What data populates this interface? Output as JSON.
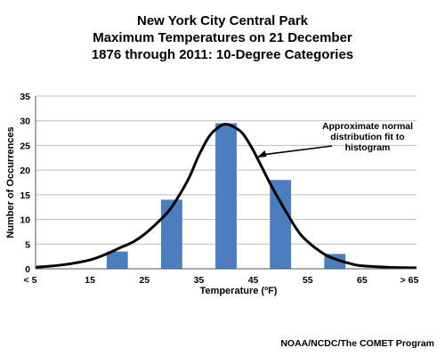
{
  "chart_data": {
    "type": "bar",
    "title_lines": [
      "New York City Central Park",
      "Maximum Temperatures on 21 December",
      "1876 through 2011: 10-Degree Categories"
    ],
    "xlabel": "Temperature (ºF)",
    "ylabel": "Number of Occurrences",
    "x_ticks": [
      "< 5",
      "15",
      "25",
      "35",
      "45",
      "55",
      "65",
      "> 65"
    ],
    "x_tick_values": [
      5,
      15,
      25,
      35,
      45,
      55,
      65,
      75
    ],
    "xlim": [
      5,
      75
    ],
    "ylim": [
      0,
      35
    ],
    "y_ticks": [
      0,
      5,
      10,
      15,
      20,
      25,
      30,
      35
    ],
    "grid": "horizontal",
    "categories": [
      "15-25",
      "25-35",
      "35-45",
      "45-55",
      "55-65"
    ],
    "bars": [
      {
        "x": 20,
        "value": 3.5
      },
      {
        "x": 30,
        "value": 14
      },
      {
        "x": 40,
        "value": 29.5
      },
      {
        "x": 50,
        "value": 18
      },
      {
        "x": 60,
        "value": 3
      }
    ],
    "bar_color": "#4a7ebf",
    "curve": {
      "type": "line",
      "x": [
        5,
        10,
        15,
        18,
        20,
        23,
        25,
        28,
        30,
        33,
        35,
        37,
        39,
        40,
        41,
        43,
        45,
        48,
        50,
        53,
        55,
        58,
        60,
        63,
        65,
        70,
        75
      ],
      "y": [
        0.3,
        0.8,
        1.8,
        3.0,
        4.0,
        5.5,
        7.0,
        10.0,
        12.5,
        18.0,
        23.0,
        27.0,
        29.0,
        29.3,
        29.0,
        27.5,
        24.0,
        17.5,
        13.5,
        8.0,
        5.5,
        3.0,
        2.0,
        1.0,
        0.6,
        0.3,
        0.2
      ],
      "color": "#000000"
    },
    "annotation": {
      "lines": [
        "Approximate normal",
        "distribution fit to",
        "histogram"
      ],
      "arrow_to": {
        "x": 45,
        "y": 22
      }
    }
  },
  "credit": "NOAA/NCDC/The COMET Program"
}
